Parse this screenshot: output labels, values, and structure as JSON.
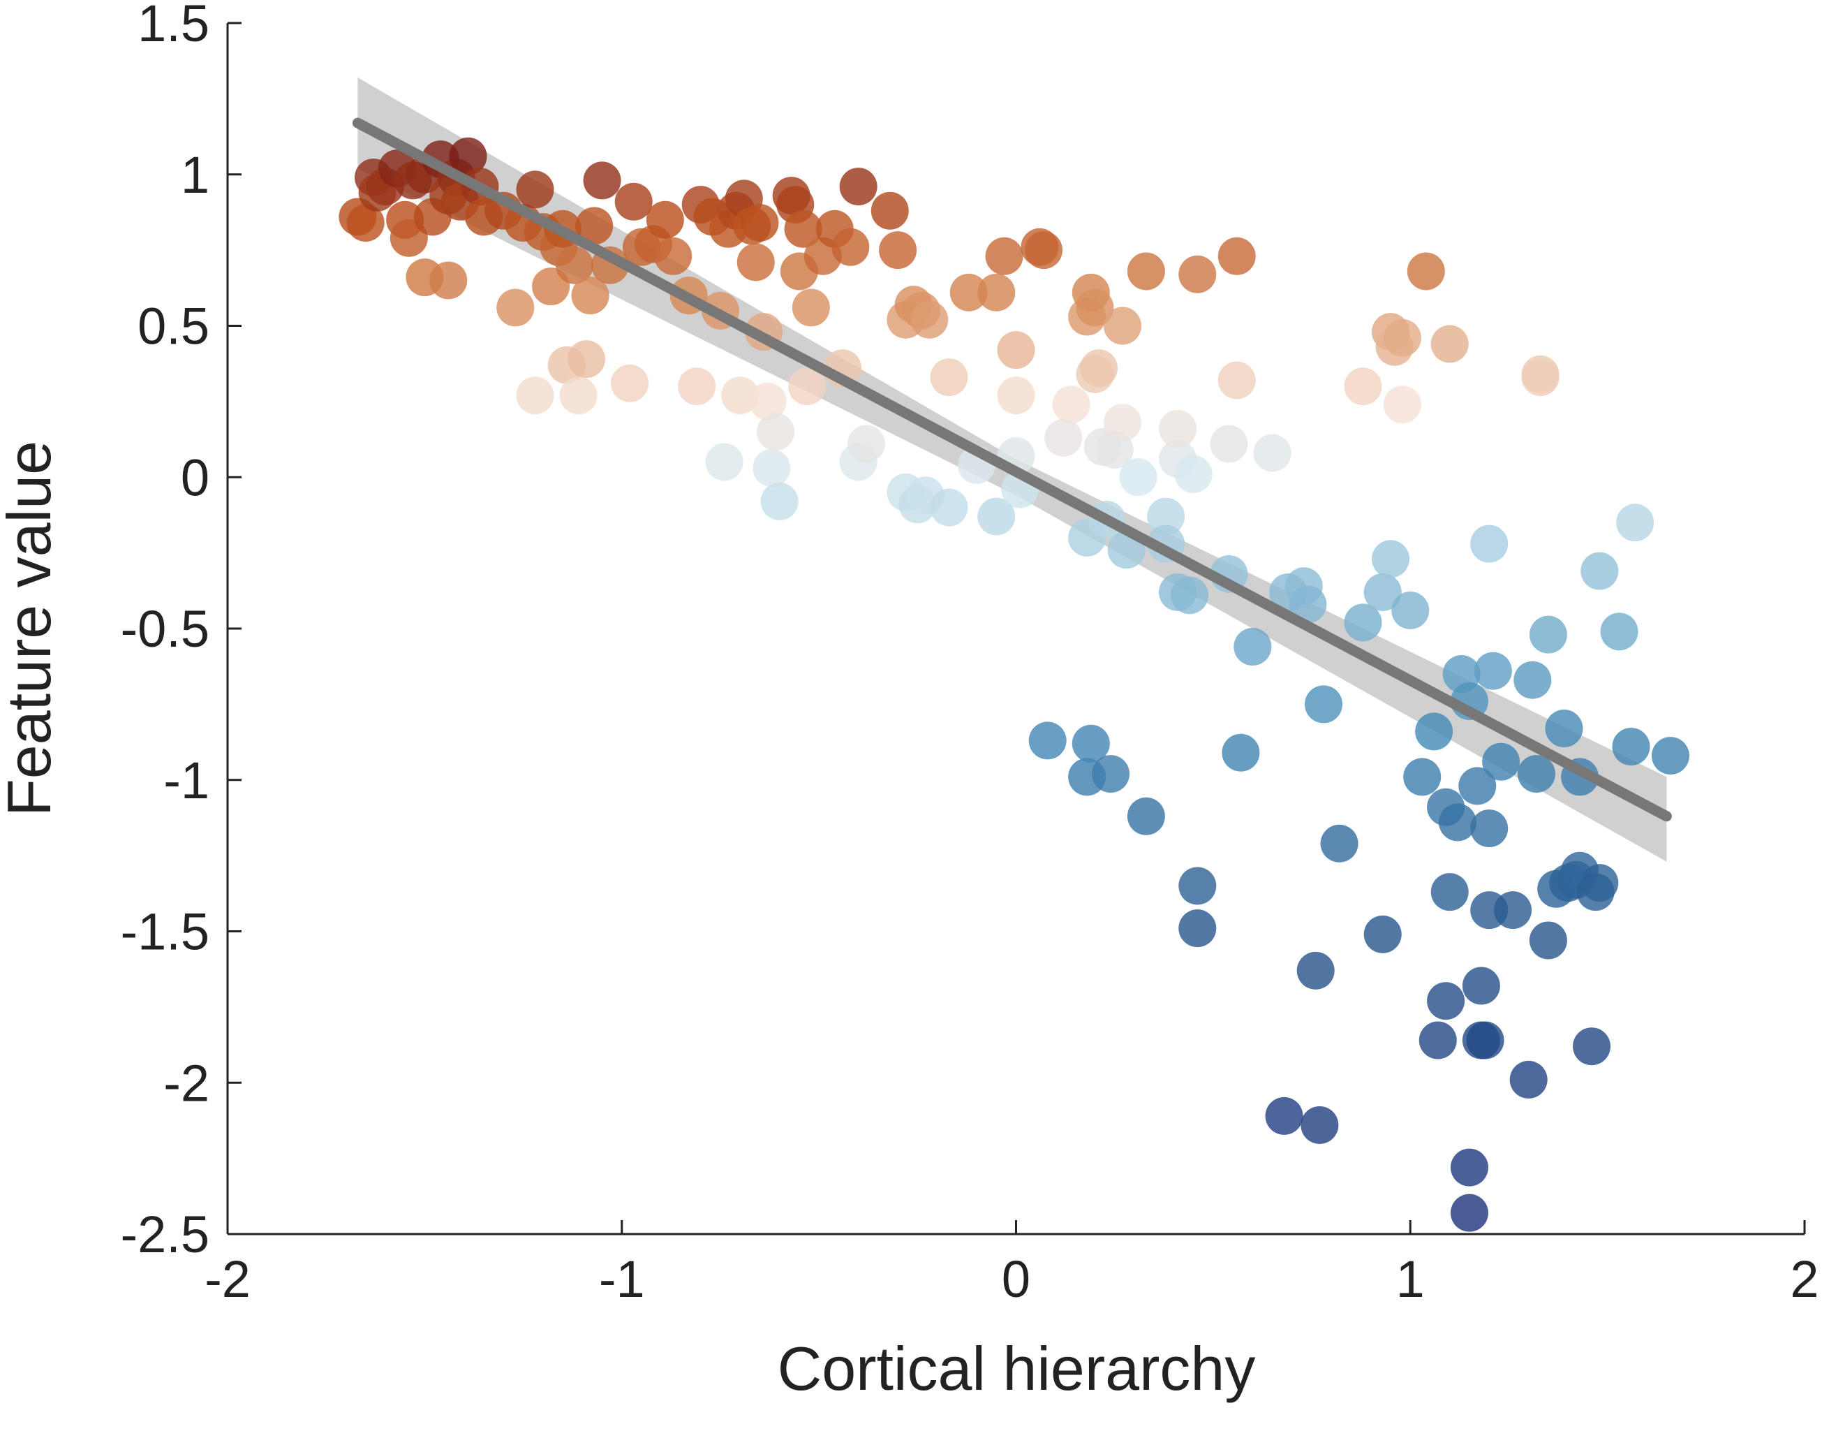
{
  "chart_data": {
    "type": "scatter",
    "title": "",
    "xlabel": "Cortical hierarchy",
    "ylabel": "Feature value",
    "xlim": [
      -2,
      2
    ],
    "ylim": [
      -2.5,
      1.5
    ],
    "xticks": [
      -2,
      -1,
      0,
      1,
      2
    ],
    "yticks": [
      -2.5,
      -2,
      -1.5,
      -1,
      -0.5,
      0,
      0.5,
      1,
      1.5
    ],
    "xtick_labels": [
      "-2",
      "-1",
      "0",
      "1",
      "2"
    ],
    "ytick_labels": [
      "-2.5",
      "-2",
      "-1.5",
      "-1",
      "-0.5",
      "0",
      "0.5",
      "1",
      "1.5"
    ],
    "grid": false,
    "legend": "none",
    "point_color_encoding": "diverging by feature value: dark red (high) to white (~0) to dark blue (low)",
    "colors": {
      "high": "#7a1f1a",
      "mid_high": "#d27a45",
      "neutral": "#f2e8e4",
      "mid_low": "#5d9ac3",
      "low": "#233b86",
      "fit_line": "#777777",
      "confidence_band": "#c8c8c8"
    },
    "fit_line": {
      "x": [
        -1.67,
        1.65
      ],
      "y": [
        1.17,
        -1.12
      ]
    },
    "confidence_band": {
      "x": [
        -1.67,
        0,
        1.65
      ],
      "upper": [
        1.32,
        0.06,
        -0.99
      ],
      "lower": [
        1.02,
        -0.06,
        -1.27
      ]
    },
    "points": [
      [
        -1.67,
        0.86
      ],
      [
        -1.65,
        0.84
      ],
      [
        -1.63,
        0.99
      ],
      [
        -1.62,
        0.94
      ],
      [
        -1.6,
        0.96
      ],
      [
        -1.57,
        1.02
      ],
      [
        -1.55,
        0.85
      ],
      [
        -1.54,
        0.79
      ],
      [
        -1.53,
        0.98
      ],
      [
        -1.5,
        1.0
      ],
      [
        -1.5,
        0.66
      ],
      [
        -1.48,
        0.86
      ],
      [
        -1.46,
        1.05
      ],
      [
        -1.44,
        0.93
      ],
      [
        -1.44,
        0.65
      ],
      [
        -1.42,
        0.99
      ],
      [
        -1.41,
        0.91
      ],
      [
        -1.39,
        1.06
      ],
      [
        -1.36,
        0.96
      ],
      [
        -1.35,
        0.86
      ],
      [
        -1.3,
        0.88
      ],
      [
        -1.27,
        0.56
      ],
      [
        -1.25,
        0.84
      ],
      [
        -1.22,
        0.95
      ],
      [
        -1.22,
        0.27
      ],
      [
        -1.2,
        0.81
      ],
      [
        -1.18,
        0.63
      ],
      [
        -1.16,
        0.76
      ],
      [
        -1.15,
        0.82
      ],
      [
        -1.14,
        0.37
      ],
      [
        -1.12,
        0.7
      ],
      [
        -1.11,
        0.27
      ],
      [
        -1.09,
        0.39
      ],
      [
        -1.08,
        0.6
      ],
      [
        -1.07,
        0.83
      ],
      [
        -1.05,
        0.98
      ],
      [
        -1.03,
        0.7
      ],
      [
        -0.98,
        0.31
      ],
      [
        -0.97,
        0.91
      ],
      [
        -0.95,
        0.76
      ],
      [
        -0.92,
        0.77
      ],
      [
        -0.89,
        0.85
      ],
      [
        -0.87,
        0.73
      ],
      [
        -0.83,
        0.6
      ],
      [
        -0.81,
        0.3
      ],
      [
        -0.8,
        0.9
      ],
      [
        -0.77,
        0.86
      ],
      [
        -0.75,
        0.55
      ],
      [
        -0.74,
        0.05
      ],
      [
        -0.73,
        0.82
      ],
      [
        -0.71,
        0.88
      ],
      [
        -0.7,
        0.27
      ],
      [
        -0.69,
        0.92
      ],
      [
        -0.67,
        0.83
      ],
      [
        -0.66,
        0.71
      ],
      [
        -0.65,
        0.84
      ],
      [
        -0.64,
        0.48
      ],
      [
        -0.63,
        0.25
      ],
      [
        -0.62,
        0.03
      ],
      [
        -0.61,
        0.15
      ],
      [
        -0.6,
        -0.08
      ],
      [
        -0.57,
        0.93
      ],
      [
        -0.56,
        0.9
      ],
      [
        -0.55,
        0.68
      ],
      [
        -0.54,
        0.82
      ],
      [
        -0.53,
        0.3
      ],
      [
        -0.52,
        0.56
      ],
      [
        -0.49,
        0.73
      ],
      [
        -0.46,
        0.82
      ],
      [
        -0.44,
        0.36
      ],
      [
        -0.42,
        0.76
      ],
      [
        -0.4,
        0.96
      ],
      [
        -0.4,
        0.05
      ],
      [
        -0.38,
        0.11
      ],
      [
        -0.32,
        0.88
      ],
      [
        -0.3,
        0.75
      ],
      [
        -0.28,
        -0.05
      ],
      [
        -0.28,
        0.52
      ],
      [
        -0.26,
        0.57
      ],
      [
        -0.25,
        -0.09
      ],
      [
        -0.24,
        0.55
      ],
      [
        -0.23,
        -0.06
      ],
      [
        -0.22,
        0.52
      ],
      [
        -0.17,
        -0.1
      ],
      [
        -0.17,
        0.33
      ],
      [
        -0.12,
        0.61
      ],
      [
        -0.1,
        0.04
      ],
      [
        -0.05,
        0.61
      ],
      [
        -0.05,
        -0.13
      ],
      [
        -0.03,
        0.73
      ],
      [
        0.0,
        0.42
      ],
      [
        0.0,
        0.27
      ],
      [
        0.0,
        0.07
      ],
      [
        0.01,
        -0.04
      ],
      [
        0.06,
        0.76
      ],
      [
        0.07,
        0.75
      ],
      [
        0.08,
        -0.87
      ],
      [
        0.12,
        0.13
      ],
      [
        0.14,
        0.24
      ],
      [
        0.18,
        0.53
      ],
      [
        0.18,
        -0.2
      ],
      [
        0.18,
        -0.99
      ],
      [
        0.19,
        0.61
      ],
      [
        0.19,
        -0.88
      ],
      [
        0.2,
        0.56
      ],
      [
        0.2,
        0.34
      ],
      [
        0.21,
        0.36
      ],
      [
        0.22,
        0.1
      ],
      [
        0.23,
        -0.14
      ],
      [
        0.24,
        -0.98
      ],
      [
        0.25,
        0.09
      ],
      [
        0.27,
        0.18
      ],
      [
        0.27,
        0.5
      ],
      [
        0.28,
        -0.24
      ],
      [
        0.31,
        0.0
      ],
      [
        0.33,
        0.68
      ],
      [
        0.33,
        -1.12
      ],
      [
        0.38,
        -0.13
      ],
      [
        0.38,
        -0.22
      ],
      [
        0.41,
        0.06
      ],
      [
        0.41,
        -0.38
      ],
      [
        0.41,
        0.16
      ],
      [
        0.44,
        -0.39
      ],
      [
        0.45,
        0.01
      ],
      [
        0.46,
        -1.35
      ],
      [
        0.46,
        0.67
      ],
      [
        0.46,
        -1.49
      ],
      [
        0.54,
        0.11
      ],
      [
        0.54,
        -0.32
      ],
      [
        0.56,
        0.32
      ],
      [
        0.57,
        -0.91
      ],
      [
        0.56,
        0.73
      ],
      [
        0.6,
        -0.56
      ],
      [
        0.65,
        0.08
      ],
      [
        0.68,
        -2.11
      ],
      [
        0.69,
        -0.38
      ],
      [
        0.73,
        -0.36
      ],
      [
        0.74,
        -0.42
      ],
      [
        0.76,
        -1.63
      ],
      [
        0.77,
        -2.14
      ],
      [
        0.78,
        -0.75
      ],
      [
        0.82,
        -1.21
      ],
      [
        0.88,
        -0.48
      ],
      [
        0.88,
        0.3
      ],
      [
        0.93,
        -0.38
      ],
      [
        0.93,
        -1.51
      ],
      [
        0.95,
        -0.27
      ],
      [
        0.95,
        0.48
      ],
      [
        0.96,
        0.43
      ],
      [
        0.98,
        0.46
      ],
      [
        0.98,
        0.24
      ],
      [
        1.0,
        -0.44
      ],
      [
        1.03,
        -0.99
      ],
      [
        1.04,
        0.68
      ],
      [
        1.06,
        -0.84
      ],
      [
        1.07,
        -1.86
      ],
      [
        1.09,
        -1.73
      ],
      [
        1.09,
        -1.09
      ],
      [
        1.1,
        -1.37
      ],
      [
        1.1,
        0.44
      ],
      [
        1.12,
        -1.14
      ],
      [
        1.13,
        -0.65
      ],
      [
        1.15,
        -0.74
      ],
      [
        1.15,
        -2.28
      ],
      [
        1.15,
        -2.43
      ],
      [
        1.17,
        -1.02
      ],
      [
        1.18,
        -1.68
      ],
      [
        1.18,
        -1.86
      ],
      [
        1.19,
        -1.86
      ],
      [
        1.2,
        -0.22
      ],
      [
        1.2,
        -1.43
      ],
      [
        1.2,
        -1.16
      ],
      [
        1.21,
        -0.64
      ],
      [
        1.23,
        -0.94
      ],
      [
        1.26,
        -1.43
      ],
      [
        1.3,
        -1.99
      ],
      [
        1.31,
        -0.67
      ],
      [
        1.32,
        -0.98
      ],
      [
        1.33,
        0.34
      ],
      [
        1.33,
        0.33
      ],
      [
        1.35,
        -1.53
      ],
      [
        1.35,
        -0.52
      ],
      [
        1.37,
        -1.36
      ],
      [
        1.39,
        -0.83
      ],
      [
        1.4,
        -1.34
      ],
      [
        1.42,
        -1.33
      ],
      [
        1.43,
        -0.99
      ],
      [
        1.43,
        -1.3
      ],
      [
        1.46,
        -1.88
      ],
      [
        1.47,
        -1.37
      ],
      [
        1.48,
        -1.34
      ],
      [
        1.48,
        -0.31
      ],
      [
        1.53,
        -0.51
      ],
      [
        1.56,
        -0.89
      ],
      [
        1.57,
        -0.15
      ],
      [
        1.66,
        -0.92
      ]
    ]
  }
}
